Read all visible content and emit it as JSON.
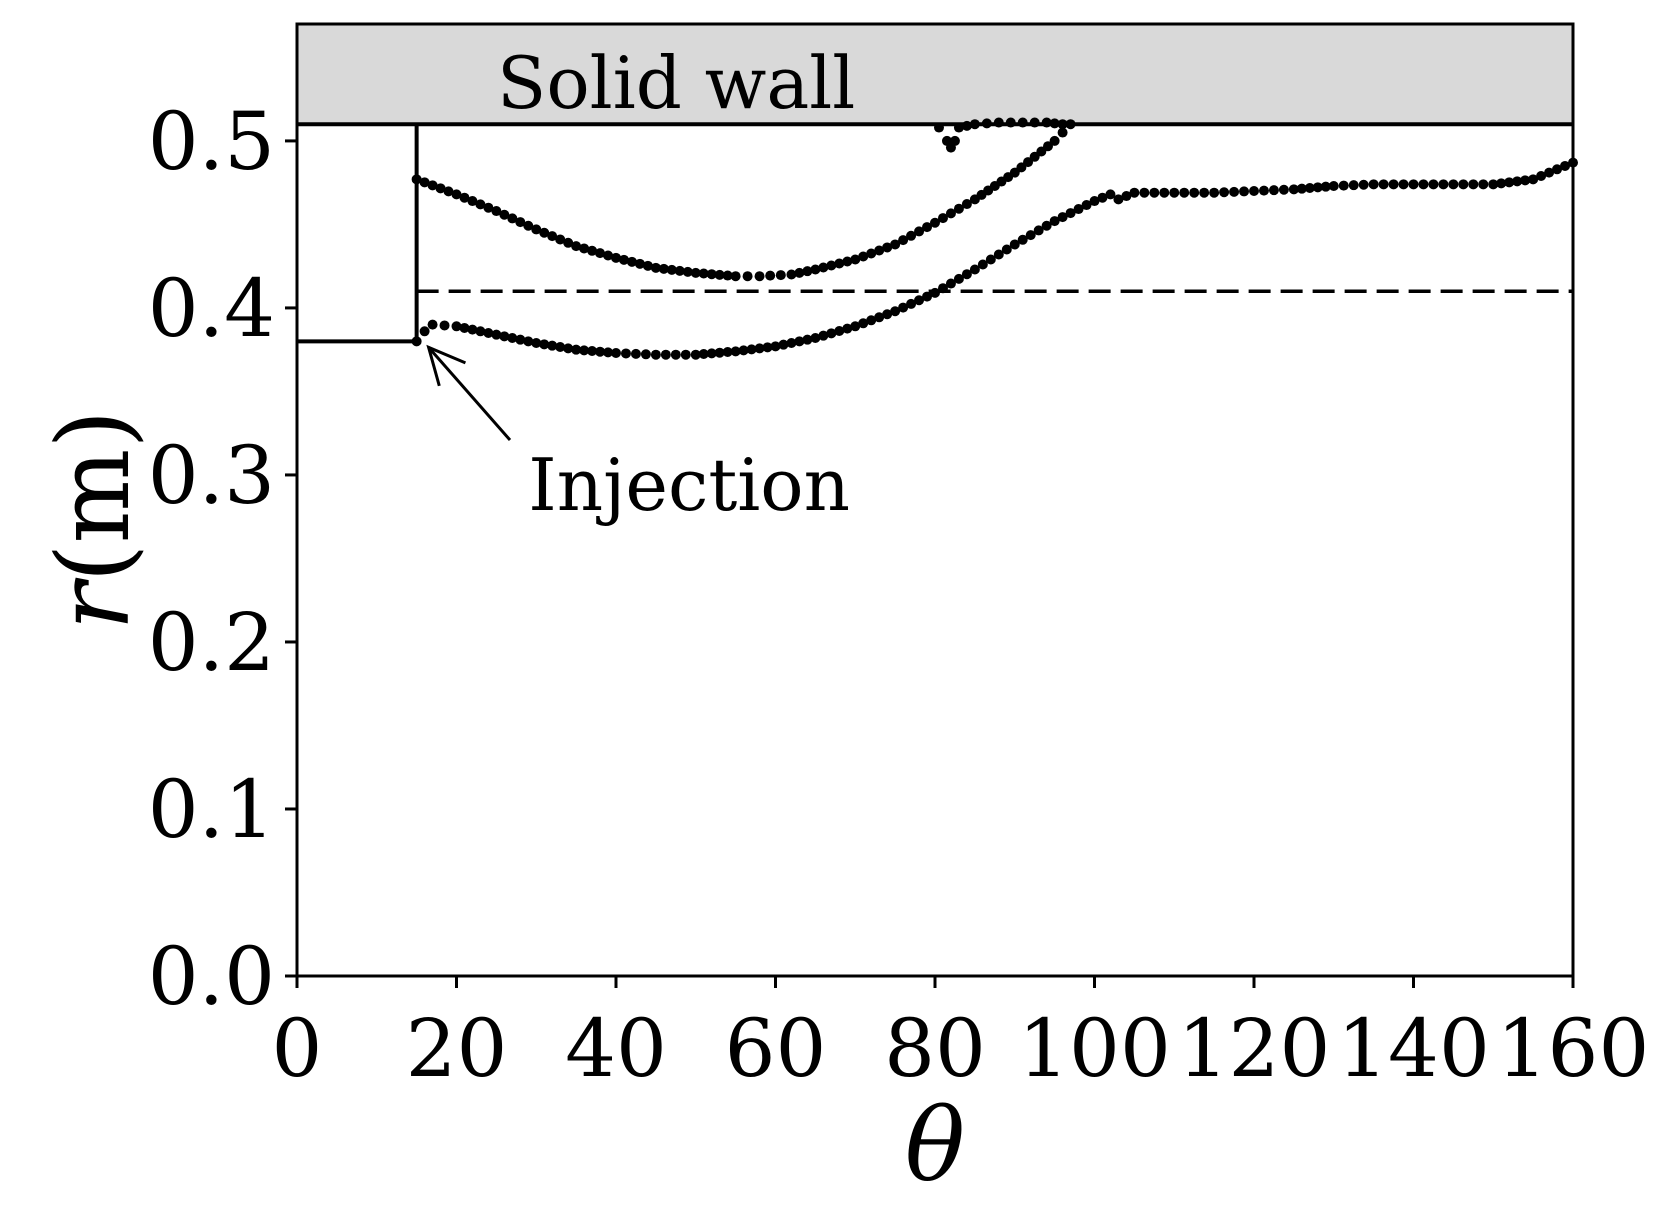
{
  "chart_data": {
    "type": "scatter",
    "title": "",
    "xlabel": "θ",
    "ylabel_symbol": "r",
    "ylabel_unit": "(m)",
    "xlim": [
      0,
      160
    ],
    "ylim": [
      0,
      0.57
    ],
    "xticks": [
      0,
      20,
      40,
      60,
      80,
      100,
      120,
      140,
      160
    ],
    "yticks": [
      0.0,
      0.1,
      0.2,
      0.3,
      0.4,
      0.5
    ],
    "x_tick_labels": [
      "0",
      "20",
      "40",
      "60",
      "80",
      "100",
      "120",
      "140",
      "160"
    ],
    "y_tick_labels": [
      "0.0",
      "0.1",
      "0.2",
      "0.3",
      "0.4",
      "0.5"
    ],
    "grid": false,
    "legend": "none",
    "colors": {
      "points": "#000000",
      "wall_fill": "#d9d9d9",
      "lines": "#000000"
    },
    "wall": {
      "label": "Solid wall",
      "r_bottom": 0.51,
      "r_top": 0.57
    },
    "injection_inlet": {
      "theta_end": 15,
      "r_low": 0.38,
      "r_high": 0.51
    },
    "dashed_reference_r": 0.41,
    "annotation": {
      "text": "Injection",
      "arrow_target": [
        16,
        0.38
      ],
      "text_position": [
        29,
        0.295
      ]
    },
    "series": [
      {
        "x": [
          15,
          20,
          25,
          30,
          35,
          40,
          45,
          50,
          55,
          58,
          62,
          65,
          70,
          75,
          80,
          85,
          90,
          95,
          97
        ],
        "y": [
          0.477,
          0.468,
          0.458,
          0.447,
          0.437,
          0.43,
          0.424,
          0.421,
          0.419,
          0.419,
          0.42,
          0.423,
          0.429,
          0.438,
          0.451,
          0.465,
          0.481,
          0.5,
          0.51
        ]
      },
      {
        "x": [
          15,
          16,
          17,
          20,
          25,
          30,
          35,
          40,
          45,
          50,
          55,
          60,
          65,
          70,
          75,
          80,
          85,
          90,
          95,
          100,
          102,
          103,
          105,
          110,
          115,
          120,
          125,
          130,
          135,
          140,
          145,
          150,
          155,
          160
        ],
        "y": [
          0.38,
          0.386,
          0.39,
          0.389,
          0.384,
          0.379,
          0.375,
          0.373,
          0.372,
          0.372,
          0.374,
          0.377,
          0.382,
          0.389,
          0.398,
          0.409,
          0.423,
          0.438,
          0.452,
          0.464,
          0.468,
          0.465,
          0.469,
          0.469,
          0.469,
          0.47,
          0.471,
          0.473,
          0.474,
          0.474,
          0.474,
          0.474,
          0.477,
          0.487
        ]
      },
      {
        "x": [
          80.5,
          81.5,
          82,
          82.5,
          83,
          85,
          88,
          91,
          94,
          96
        ],
        "y": [
          0.508,
          0.5,
          0.496,
          0.5,
          0.508,
          0.51,
          0.511,
          0.511,
          0.511,
          0.51
        ]
      }
    ]
  }
}
